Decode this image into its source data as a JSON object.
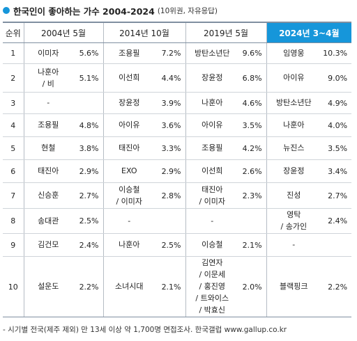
{
  "title": {
    "main": "한국인이 좋아하는 가수 2004-2024",
    "sub": "(10위권, 자유응답)",
    "dot_color": "#1696da"
  },
  "header": {
    "rank_label": "순위",
    "periods": [
      "2004년 5월",
      "2014년 10월",
      "2019년 5월",
      "2024년 3~4월"
    ],
    "highlight_color": "#1696da"
  },
  "rows": [
    {
      "rank": "1",
      "cells": [
        {
          "name": [
            "이미자"
          ],
          "pct": "5.6%"
        },
        {
          "name": [
            "조용필"
          ],
          "pct": "7.2%"
        },
        {
          "name": [
            "방탄소년단"
          ],
          "pct": "9.6%"
        },
        {
          "name": [
            "임영웅"
          ],
          "pct": "10.3%"
        }
      ]
    },
    {
      "rank": "2",
      "cells": [
        {
          "name": [
            "나훈아",
            "/ 비"
          ],
          "pct": "5.1%"
        },
        {
          "name": [
            "이선희"
          ],
          "pct": "4.4%"
        },
        {
          "name": [
            "장윤정"
          ],
          "pct": "6.8%"
        },
        {
          "name": [
            "아이유"
          ],
          "pct": "9.0%"
        }
      ]
    },
    {
      "rank": "3",
      "cells": [
        {
          "name": [
            "-"
          ],
          "pct": ""
        },
        {
          "name": [
            "장윤정"
          ],
          "pct": "3.9%"
        },
        {
          "name": [
            "나훈아"
          ],
          "pct": "4.6%"
        },
        {
          "name": [
            "방탄소년단"
          ],
          "pct": "4.9%"
        }
      ]
    },
    {
      "rank": "4",
      "cells": [
        {
          "name": [
            "조용필"
          ],
          "pct": "4.8%"
        },
        {
          "name": [
            "아이유"
          ],
          "pct": "3.6%"
        },
        {
          "name": [
            "아이유"
          ],
          "pct": "3.5%"
        },
        {
          "name": [
            "나훈아"
          ],
          "pct": "4.0%"
        }
      ]
    },
    {
      "rank": "5",
      "cells": [
        {
          "name": [
            "현철"
          ],
          "pct": "3.8%"
        },
        {
          "name": [
            "태진아"
          ],
          "pct": "3.3%"
        },
        {
          "name": [
            "조용필"
          ],
          "pct": "4.2%"
        },
        {
          "name": [
            "뉴진스"
          ],
          "pct": "3.5%"
        }
      ]
    },
    {
      "rank": "6",
      "cells": [
        {
          "name": [
            "태진아"
          ],
          "pct": "2.9%"
        },
        {
          "name": [
            "EXO"
          ],
          "pct": "2.9%"
        },
        {
          "name": [
            "이선희"
          ],
          "pct": "2.6%"
        },
        {
          "name": [
            "장윤정"
          ],
          "pct": "3.4%"
        }
      ]
    },
    {
      "rank": "7",
      "cells": [
        {
          "name": [
            "신승훈"
          ],
          "pct": "2.7%"
        },
        {
          "name": [
            "이승철",
            "/ 이미자"
          ],
          "pct": "2.8%"
        },
        {
          "name": [
            "태진아",
            "/ 이미자"
          ],
          "pct": "2.3%"
        },
        {
          "name": [
            "진성"
          ],
          "pct": "2.7%"
        }
      ]
    },
    {
      "rank": "8",
      "cells": [
        {
          "name": [
            "송대관"
          ],
          "pct": "2.5%"
        },
        {
          "name": [
            "-"
          ],
          "pct": ""
        },
        {
          "name": [
            "-"
          ],
          "pct": ""
        },
        {
          "name": [
            "영탁",
            "/ 송가인"
          ],
          "pct": "2.4%"
        }
      ]
    },
    {
      "rank": "9",
      "cells": [
        {
          "name": [
            "김건모"
          ],
          "pct": "2.4%"
        },
        {
          "name": [
            "나훈아"
          ],
          "pct": "2.5%"
        },
        {
          "name": [
            "이승철"
          ],
          "pct": "2.1%"
        },
        {
          "name": [
            "-"
          ],
          "pct": ""
        }
      ]
    },
    {
      "rank": "10",
      "cells": [
        {
          "name": [
            "설운도"
          ],
          "pct": "2.2%"
        },
        {
          "name": [
            "소녀시대"
          ],
          "pct": "2.1%"
        },
        {
          "name": [
            "김연자",
            "/ 이문세",
            "/ 홍진영",
            "/ 트와이스",
            "/ 박효신"
          ],
          "pct": "2.0%"
        },
        {
          "name": [
            "블랙핑크"
          ],
          "pct": "2.2%"
        }
      ]
    }
  ],
  "footnote": "- 시기별 전국(제주 제외) 만 13세 이상 약 1,700명 면접조사. 한국갤럽 www.gallup.co.kr"
}
